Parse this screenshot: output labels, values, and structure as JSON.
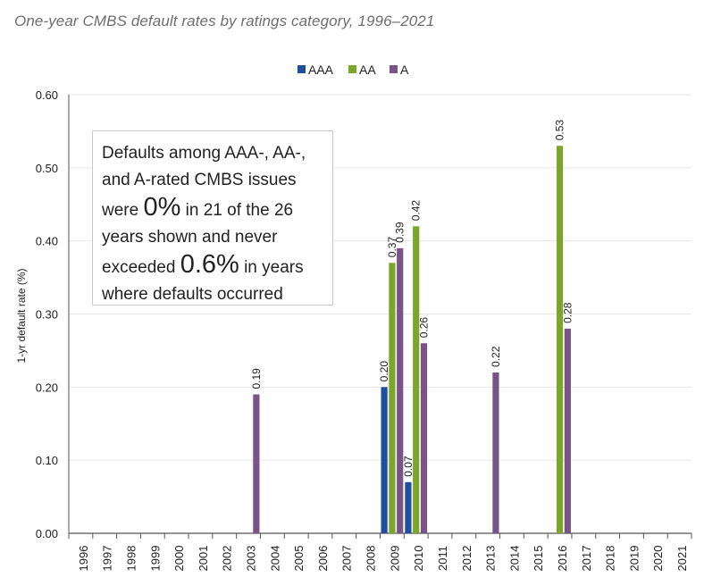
{
  "title": "One-year CMBS default rates by ratings category, 1996–2021",
  "callout": {
    "line1": "Defaults among AAA-, AA-,",
    "line2": "and A-rated CMBS issues",
    "line3_pre": "were",
    "line3_big": "0%",
    "line3_post": "in 21 of the 26",
    "line4": "years shown and never",
    "line5_pre": "exceeded",
    "line5_big": "0.6%",
    "line5_post": "in years",
    "line6": "where defaults occurred"
  },
  "colors": {
    "AAA": "#1f4e9f",
    "AA": "#7aa72a",
    "A": "#7a5488",
    "grid": "#e6e6e6",
    "axis": "#555555"
  },
  "chart_data": {
    "type": "bar",
    "title": "One-year CMBS default rates by ratings category, 1996–2021",
    "xlabel": "",
    "ylabel": "1-yr default rate (%)",
    "ylim": [
      0,
      0.6
    ],
    "yticks": [
      "0.00",
      "0.10",
      "0.20",
      "0.30",
      "0.40",
      "0.50",
      "0.60"
    ],
    "legend_position": "top-center",
    "categories": [
      "1996",
      "1997",
      "1998",
      "1999",
      "2000",
      "2001",
      "2002",
      "2003",
      "2004",
      "2005",
      "2006",
      "2007",
      "2008",
      "2009",
      "2010",
      "2011",
      "2012",
      "2013",
      "2014",
      "2015",
      "2016",
      "2017",
      "2018",
      "2019",
      "2020",
      "2021"
    ],
    "series": [
      {
        "name": "AAA",
        "values": [
          0,
          0,
          0,
          0,
          0,
          0,
          0,
          0,
          0,
          0,
          0,
          0,
          0,
          0.2,
          0.07,
          0,
          0,
          0,
          0,
          0,
          0,
          0,
          0,
          0,
          0,
          0
        ]
      },
      {
        "name": "AA",
        "values": [
          0,
          0,
          0,
          0,
          0,
          0,
          0,
          0,
          0,
          0,
          0,
          0,
          0,
          0.37,
          0.42,
          0,
          0,
          0,
          0,
          0,
          0.53,
          0,
          0,
          0,
          0,
          0
        ]
      },
      {
        "name": "A",
        "values": [
          0,
          0,
          0,
          0,
          0,
          0,
          0,
          0.19,
          0,
          0,
          0,
          0,
          0,
          0.39,
          0.26,
          0,
          0,
          0.22,
          0,
          0,
          0.28,
          0,
          0,
          0,
          0,
          0
        ]
      }
    ]
  }
}
